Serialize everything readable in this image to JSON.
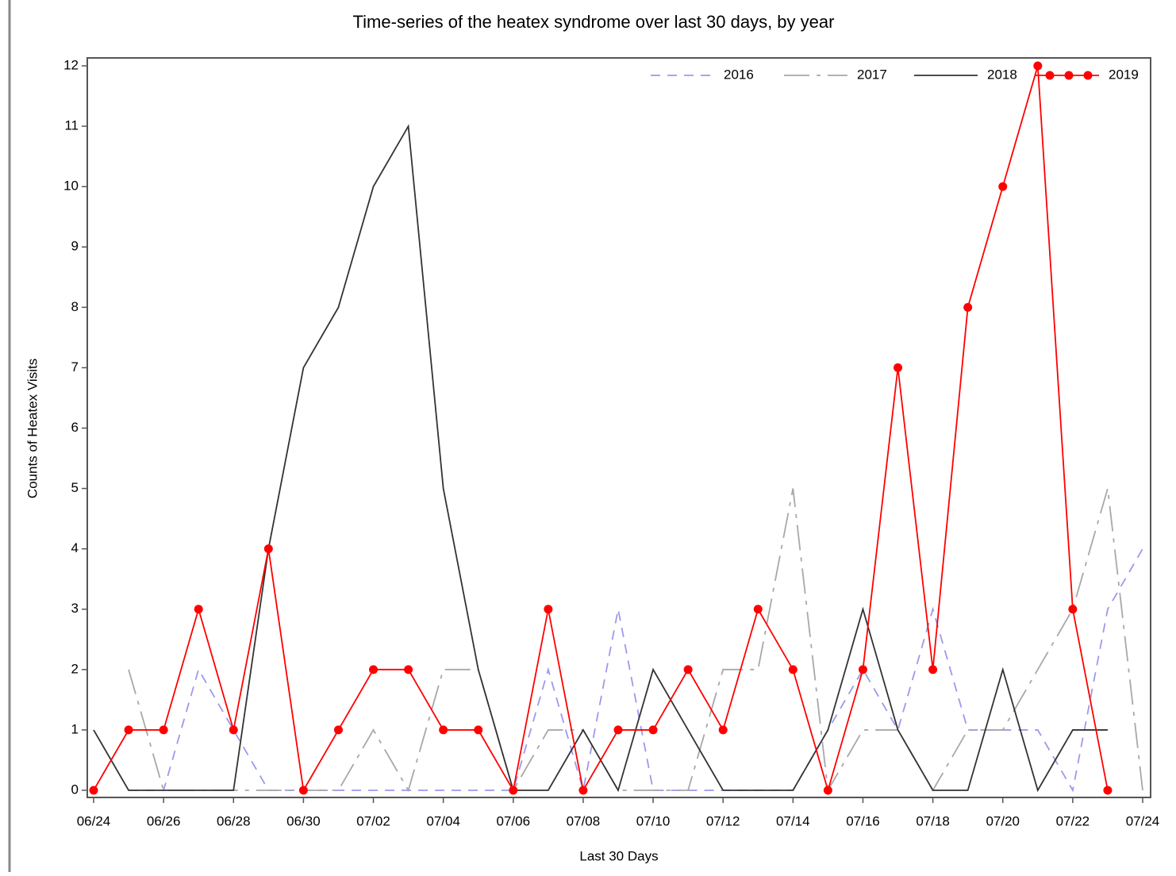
{
  "chart_data": {
    "type": "line",
    "title": "Time-series of the heatex syndrome over last 30 days, by year",
    "x_label": "Last 30 Days",
    "y_label": "Counts of Heatex Visits",
    "categories": [
      "06/24",
      null,
      "06/26",
      null,
      "06/28",
      null,
      "06/30",
      null,
      "07/02",
      null,
      "07/04",
      null,
      "07/06",
      null,
      "07/08",
      null,
      "07/10",
      null,
      "07/12",
      null,
      "07/14",
      null,
      "07/16",
      null,
      "07/18",
      null,
      "07/20",
      null,
      "07/22",
      null,
      "07/24"
    ],
    "series": [
      {
        "name": "2016",
        "color": "#9a9aee",
        "dash": "dashed",
        "markers": false,
        "values": [
          null,
          0,
          0,
          2,
          1,
          0,
          0,
          0,
          0,
          0,
          0,
          0,
          0,
          2,
          0,
          3,
          0,
          0,
          0,
          0,
          0,
          1,
          2,
          1,
          3,
          1,
          1,
          1,
          0,
          3,
          4
        ]
      },
      {
        "name": "2017",
        "color": "#a8a8a8",
        "dash": "dash-dot",
        "markers": false,
        "values": [
          null,
          2,
          0,
          0,
          0,
          0,
          0,
          0,
          1,
          0,
          2,
          2,
          0,
          1,
          1,
          0,
          0,
          0,
          2,
          2,
          5,
          0,
          1,
          1,
          0,
          1,
          1,
          2,
          3,
          5,
          0
        ]
      },
      {
        "name": "2018",
        "color": "#333333",
        "dash": "solid",
        "markers": false,
        "values": [
          1,
          0,
          0,
          0,
          0,
          4,
          7,
          8,
          10,
          11,
          5,
          2,
          0,
          0,
          1,
          0,
          2,
          1,
          0,
          0,
          0,
          1,
          3,
          1,
          0,
          0,
          2,
          0,
          1,
          1,
          null
        ]
      },
      {
        "name": "2019",
        "color": "#ff0000",
        "dash": "solid",
        "markers": true,
        "values": [
          0,
          1,
          1,
          3,
          1,
          4,
          0,
          1,
          2,
          2,
          1,
          1,
          0,
          3,
          0,
          1,
          1,
          2,
          1,
          3,
          2,
          0,
          2,
          7,
          2,
          8,
          10,
          12,
          3,
          0,
          null
        ]
      }
    ],
    "ylim": [
      0,
      12
    ],
    "yticks": [
      0,
      1,
      2,
      3,
      4,
      5,
      6,
      7,
      8,
      9,
      10,
      11,
      12
    ],
    "legend": "top-right",
    "grid": false
  }
}
